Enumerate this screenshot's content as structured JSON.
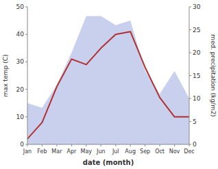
{
  "chart_data": {
    "type": "line",
    "categories": [
      "Jan",
      "Feb",
      "Mar",
      "Apr",
      "May",
      "Jun",
      "Jul",
      "Aug",
      "Sep",
      "Oct",
      "Nov",
      "Dec"
    ],
    "series": [
      {
        "type": "area",
        "axis": "y2",
        "color": "#c8d0ee",
        "values": [
          9,
          8,
          13,
          20,
          28,
          28,
          26,
          27,
          16,
          11,
          16,
          10
        ]
      },
      {
        "type": "line",
        "color": "#b03030",
        "values": [
          2,
          8,
          21,
          31,
          29,
          35,
          40,
          41,
          28,
          17,
          10,
          10
        ]
      }
    ],
    "xlabel": "date (month)",
    "ylabel": "max temp (C)",
    "y2label": "med. precipitation (kg/m2)",
    "ylim": [
      0,
      50
    ],
    "yticks": [
      0,
      10,
      20,
      30,
      40,
      50
    ],
    "y2lim": [
      0,
      30
    ],
    "y2ticks": [
      0,
      5,
      10,
      15,
      20,
      25,
      30
    ],
    "grid": false
  }
}
